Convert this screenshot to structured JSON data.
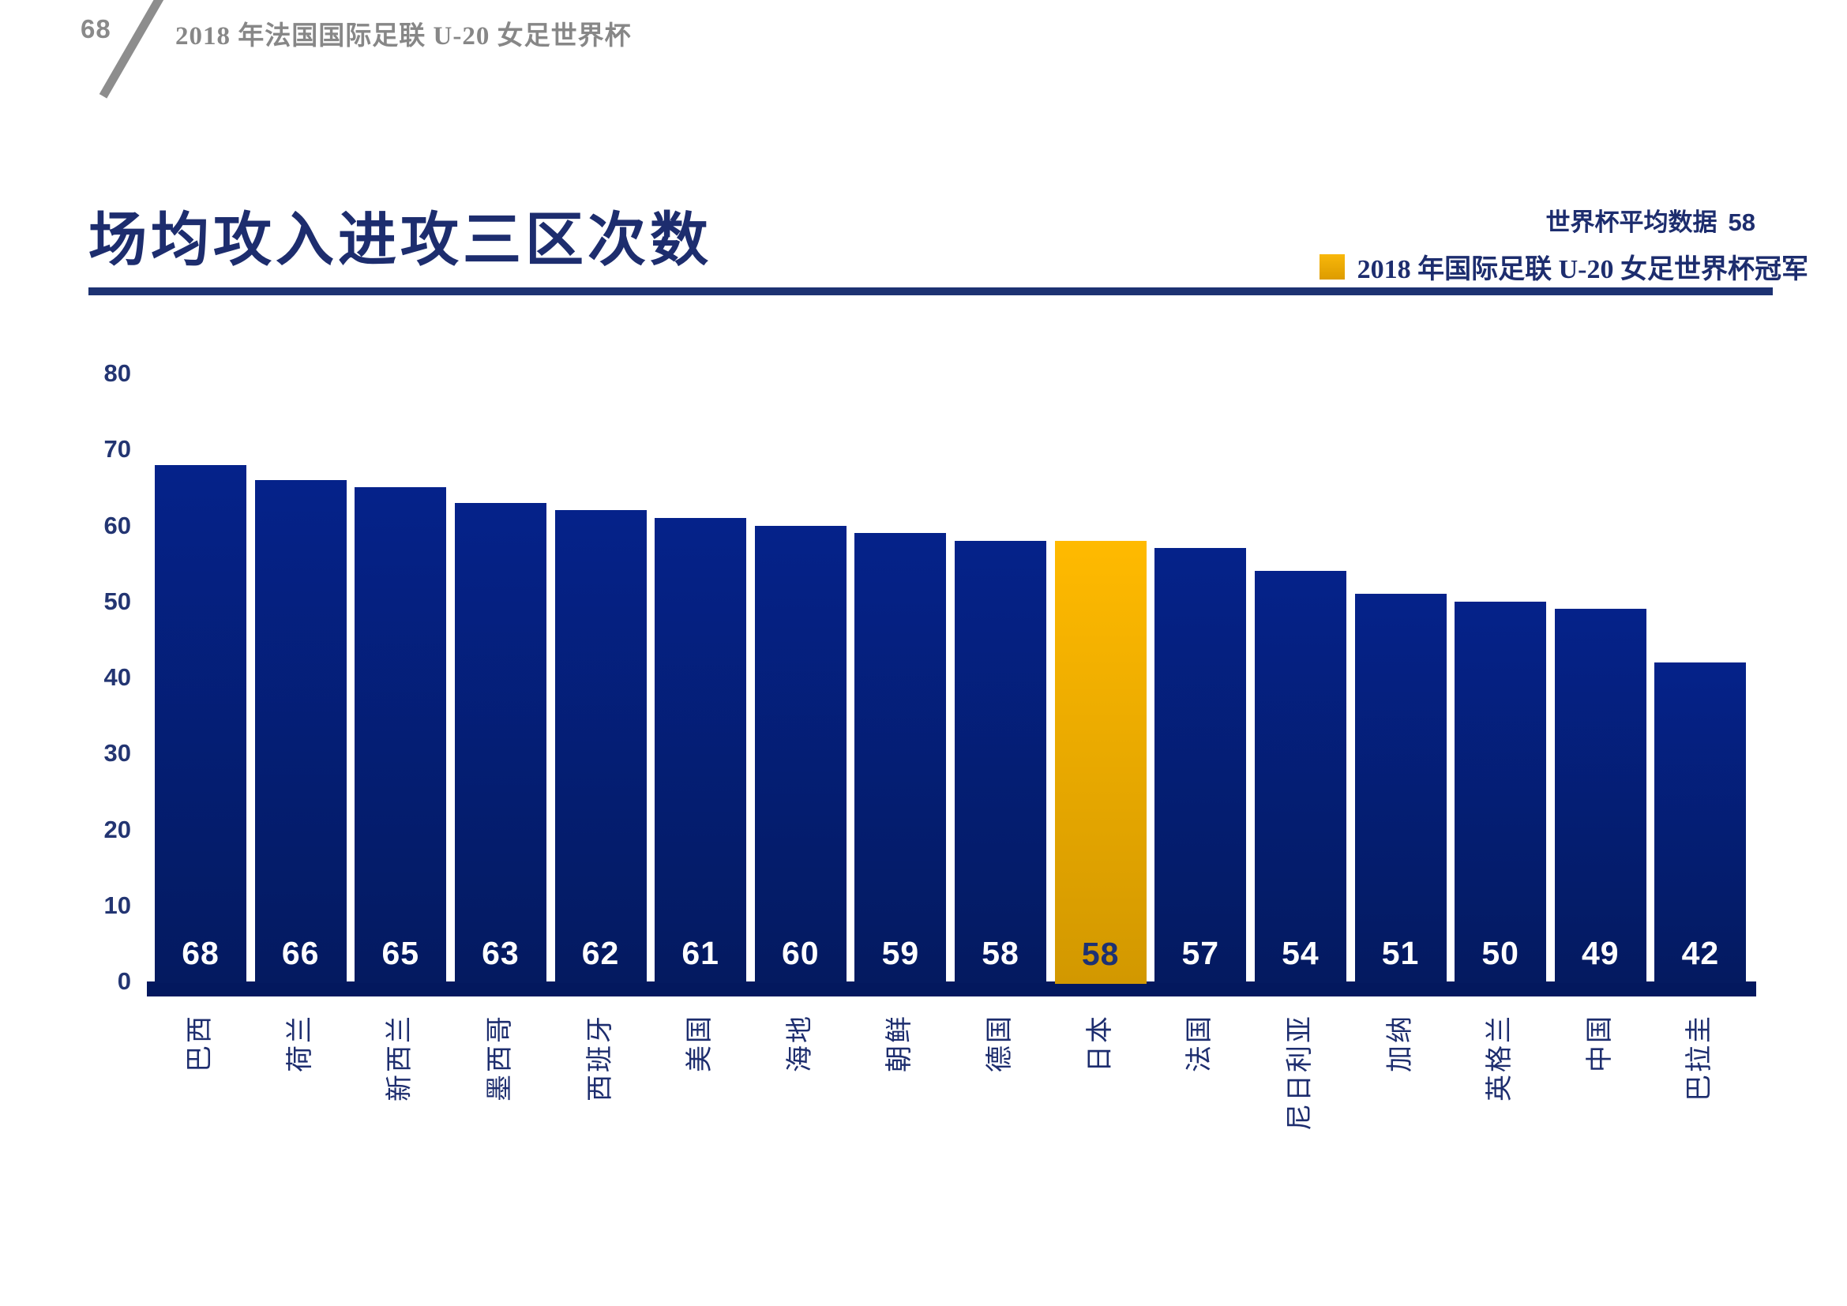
{
  "page": {
    "number": "68",
    "header": "2018 年法国国际足联 U-20 女足世界杯"
  },
  "title": "场均攻入进攻三区次数",
  "legend": {
    "average_label": "世界杯平均数据",
    "average_value": "58",
    "champion_label": "2018 年国际足联 U-20 女足世界杯冠军",
    "champion_color": "#F0A900"
  },
  "colors": {
    "bar_navy_top": "#05228A",
    "bar_navy_bottom": "#041A60",
    "highlight_gold_top": "#FFBA00",
    "highlight_gold_bottom": "#D29800",
    "text_navy": "#1D2D6E",
    "header_gray": "#8A8A8A",
    "base_band": "#03185E"
  },
  "chart_data": {
    "type": "bar",
    "title": "场均攻入进攻三区次数",
    "categories": [
      "巴西",
      "荷兰",
      "新西兰",
      "墨西哥",
      "西班牙",
      "美国",
      "海地",
      "朝鲜",
      "德国",
      "日本",
      "法国",
      "尼日利亚",
      "加纳",
      "英格兰",
      "中国",
      "巴拉圭"
    ],
    "values": [
      68,
      66,
      65,
      63,
      62,
      61,
      60,
      59,
      58,
      58,
      57,
      54,
      51,
      50,
      49,
      42
    ],
    "highlight_index": 9,
    "highlight_category": "日本",
    "world_cup_average": 58,
    "xlabel": "",
    "ylabel": "",
    "ylim": [
      0,
      80
    ],
    "yticks": [
      0,
      10,
      20,
      30,
      40,
      50,
      60,
      70,
      80
    ],
    "grid": false,
    "legend_position": "top-right",
    "value_labels": "inside-bottom",
    "x_tick_rotation": -90
  }
}
